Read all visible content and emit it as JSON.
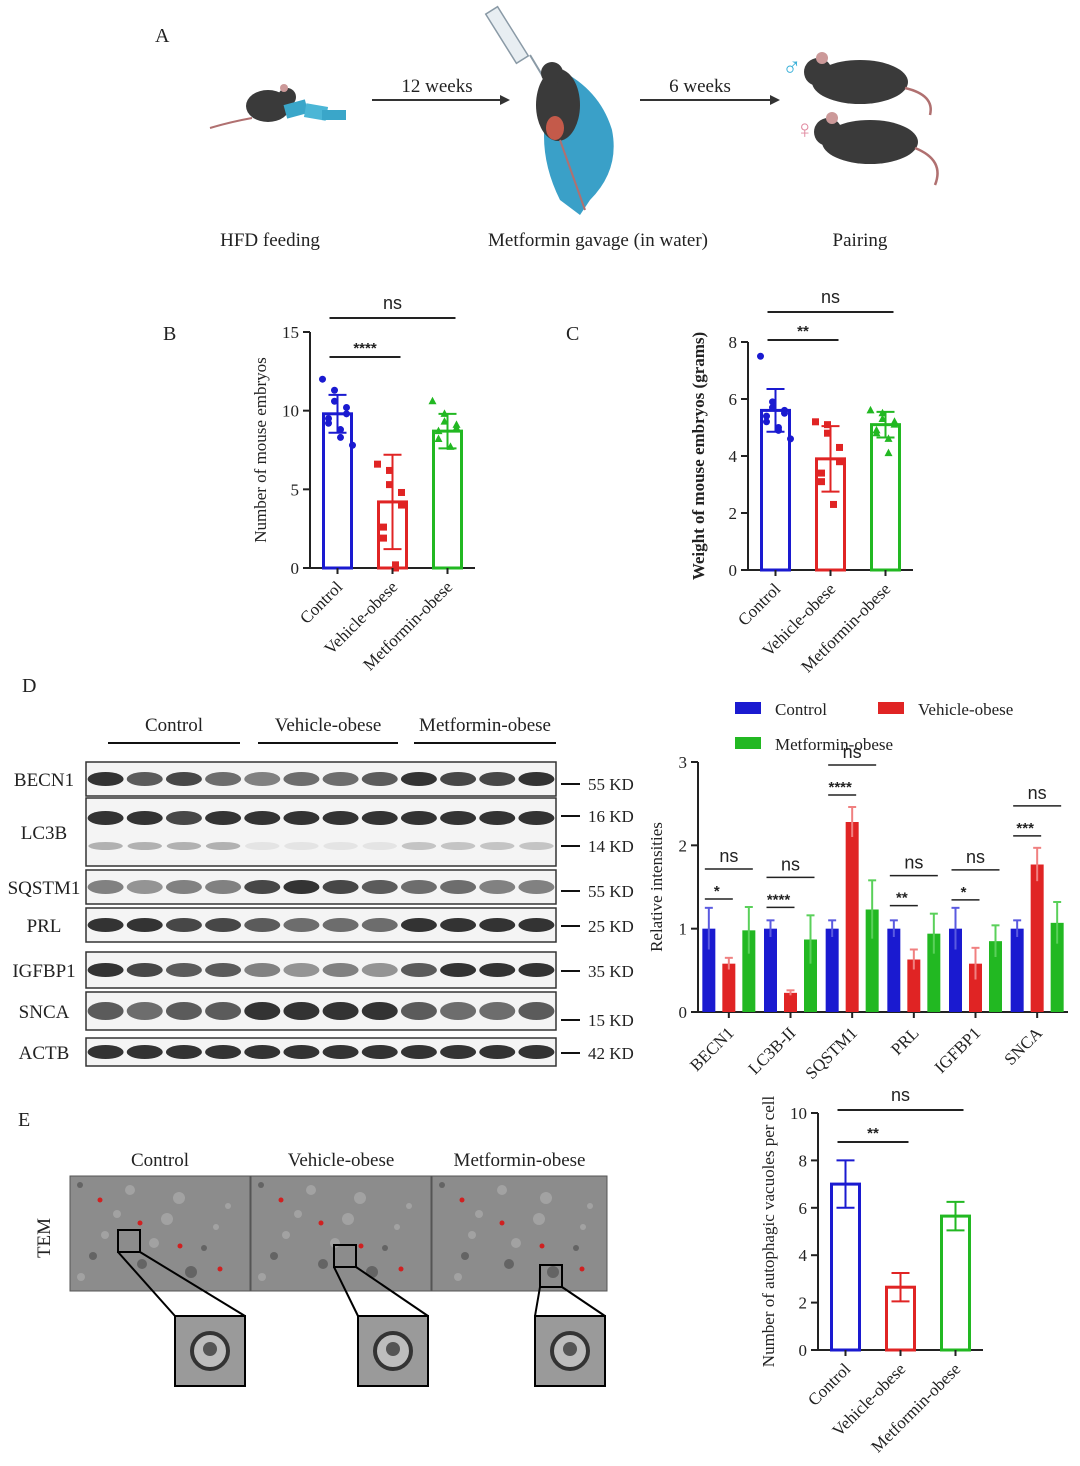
{
  "colors": {
    "control": "#1a1ad0",
    "vehicle": "#e02424",
    "metformin": "#22b822",
    "axis": "#222222"
  },
  "panel_labels": {
    "a": "A",
    "b": "B",
    "c": "C",
    "d": "D",
    "e": "E"
  },
  "panel_a": {
    "arrow1_label": "12 weeks",
    "arrow2_label": "6 weeks",
    "step1_label": "HFD feeding",
    "step2_label": "Metformin gavage (in water)",
    "step3_label": "Pairing",
    "male_symbol": "♂",
    "female_symbol": "♀"
  },
  "panel_d_blot": {
    "groups": [
      "Control",
      "Vehicle-obese",
      "Metformin-obese"
    ],
    "bands": [
      {
        "protein": "BECN1",
        "markers": [
          "55 KD"
        ]
      },
      {
        "protein": "LC3B",
        "markers": [
          "16 KD",
          "14 KD"
        ]
      },
      {
        "protein": "SQSTM1",
        "markers": [
          "55 KD"
        ]
      },
      {
        "protein": "PRL",
        "markers": [
          "25 KD"
        ]
      },
      {
        "protein": "IGFBP1",
        "markers": [
          "35 KD"
        ]
      },
      {
        "protein": "SNCA",
        "markers": [
          "15 KD"
        ]
      },
      {
        "protein": "ACTB",
        "markers": [
          "42 KD"
        ]
      }
    ]
  },
  "panel_e_tem": {
    "row_label": "TEM",
    "columns": [
      "Control",
      "Vehicle-obese",
      "Metformin-obese"
    ]
  },
  "chart_data": [
    {
      "id": "B",
      "type": "bar",
      "categories": [
        "Control",
        "Vehicle-obese",
        "Metformin-obese"
      ],
      "values": [
        9.8,
        4.2,
        8.7
      ],
      "errors": [
        1.2,
        3.0,
        1.1
      ],
      "points": [
        [
          12.0,
          11.3,
          10.6,
          10.2,
          9.8,
          9.5,
          9.2,
          8.8,
          8.3,
          7.8
        ],
        [
          6.6,
          6.2,
          5.3,
          4.8,
          4.0,
          2.6,
          1.9,
          0.2,
          0.0
        ],
        [
          10.6,
          9.8,
          9.3,
          9.1,
          8.9,
          8.7,
          8.2,
          7.7
        ]
      ],
      "ylabel": "Number of mouse embryos",
      "yticks": [
        0,
        5,
        10,
        15
      ],
      "ylim": [
        0,
        15
      ],
      "sig": [
        {
          "from": 0,
          "to": 1,
          "label": "****"
        },
        {
          "from": 0,
          "to": 2,
          "label": "ns"
        }
      ]
    },
    {
      "id": "C",
      "type": "bar",
      "categories": [
        "Control",
        "Vehicle-obese",
        "Metformin-obese"
      ],
      "values": [
        5.6,
        3.9,
        5.1
      ],
      "errors": [
        0.75,
        1.15,
        0.45
      ],
      "points": [
        [
          7.5,
          5.9,
          5.7,
          5.6,
          5.5,
          5.4,
          5.2,
          5.0,
          4.9,
          4.6
        ],
        [
          5.2,
          5.1,
          4.8,
          4.3,
          3.8,
          3.4,
          3.1,
          2.3
        ],
        [
          5.6,
          5.5,
          5.3,
          5.2,
          5.1,
          4.9,
          4.8,
          4.6,
          4.1
        ]
      ],
      "ylabel": "Weight of mouse embryos (grams)",
      "yticks": [
        0,
        2,
        4,
        6,
        8
      ],
      "ylim": [
        0,
        8
      ],
      "sig": [
        {
          "from": 0,
          "to": 1,
          "label": "**"
        },
        {
          "from": 0,
          "to": 2,
          "label": "ns"
        }
      ]
    },
    {
      "id": "D",
      "type": "bar",
      "categories": [
        "BECN1",
        "LC3B-II",
        "SQSTM1",
        "PRL",
        "IGFBP1",
        "SNCA"
      ],
      "series": [
        {
          "name": "Control",
          "values": [
            1.0,
            1.0,
            1.0,
            1.0,
            1.0,
            1.0
          ],
          "errors": [
            0.25,
            0.1,
            0.1,
            0.1,
            0.25,
            0.1
          ]
        },
        {
          "name": "Vehicle-obese",
          "values": [
            0.58,
            0.23,
            2.28,
            0.63,
            0.58,
            1.77
          ],
          "errors": [
            0.07,
            0.03,
            0.18,
            0.12,
            0.19,
            0.2
          ]
        },
        {
          "name": "Metformin-obese",
          "values": [
            0.98,
            0.87,
            1.23,
            0.94,
            0.85,
            1.07
          ],
          "errors": [
            0.28,
            0.29,
            0.35,
            0.24,
            0.19,
            0.25
          ]
        }
      ],
      "ylabel": "Relative intensities",
      "yticks": [
        0,
        1,
        2,
        3
      ],
      "ylim": [
        0,
        3
      ],
      "legend_position": "top",
      "sig": [
        {
          "cat": 0,
          "inner": "*",
          "outer": "ns"
        },
        {
          "cat": 1,
          "inner": "****",
          "outer": "ns"
        },
        {
          "cat": 2,
          "inner": "****",
          "outer": "ns"
        },
        {
          "cat": 3,
          "inner": "**",
          "outer": "ns"
        },
        {
          "cat": 4,
          "inner": "*",
          "outer": "ns"
        },
        {
          "cat": 5,
          "inner": "***",
          "outer": "ns"
        }
      ]
    },
    {
      "id": "E",
      "type": "bar",
      "categories": [
        "Control",
        "Vehicle-obese",
        "Metformin-obese"
      ],
      "values": [
        7.0,
        2.65,
        5.65
      ],
      "errors": [
        1.0,
        0.6,
        0.6
      ],
      "ylabel": "Number of autophagic vacuoles  per cell",
      "yticks": [
        0,
        2,
        4,
        6,
        8,
        10
      ],
      "ylim": [
        0,
        10
      ],
      "sig": [
        {
          "from": 0,
          "to": 1,
          "label": "**"
        },
        {
          "from": 0,
          "to": 2,
          "label": "ns"
        }
      ]
    }
  ]
}
